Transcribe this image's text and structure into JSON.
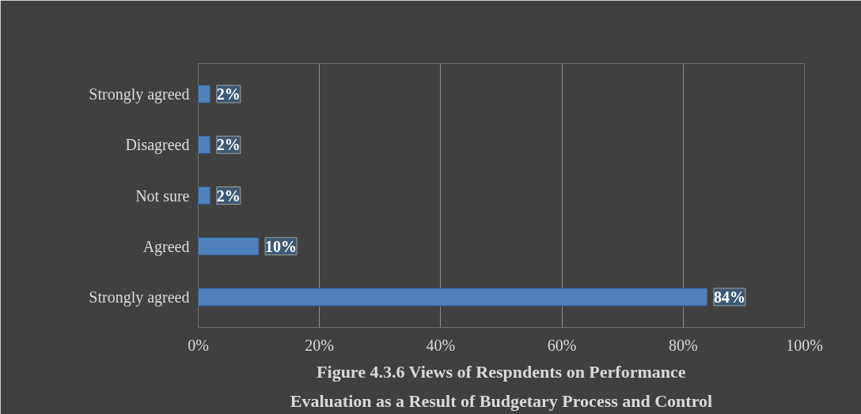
{
  "chart_data": {
    "type": "bar",
    "orientation": "horizontal",
    "title": "Figure 4.3.6 Views of Respndents on Performance Evaluation as a Result of Budgetary Process and Control",
    "categories": [
      "Strongly agreed",
      "Disagreed",
      "Not sure",
      "Agreed",
      "Strongly agreed"
    ],
    "values": [
      2,
      2,
      2,
      10,
      84
    ],
    "value_labels": [
      "2%",
      "2%",
      "2%",
      "10%",
      "84%"
    ],
    "color": "#4f81bd",
    "xlim": [
      0,
      100
    ],
    "xticks": [
      {
        "value": 0,
        "label": "0%"
      },
      {
        "value": 20,
        "label": "20%"
      },
      {
        "value": 40,
        "label": "40%"
      },
      {
        "value": 60,
        "label": "60%"
      },
      {
        "value": 80,
        "label": "80%"
      },
      {
        "value": 100,
        "label": "100%"
      }
    ],
    "grid": "x"
  }
}
